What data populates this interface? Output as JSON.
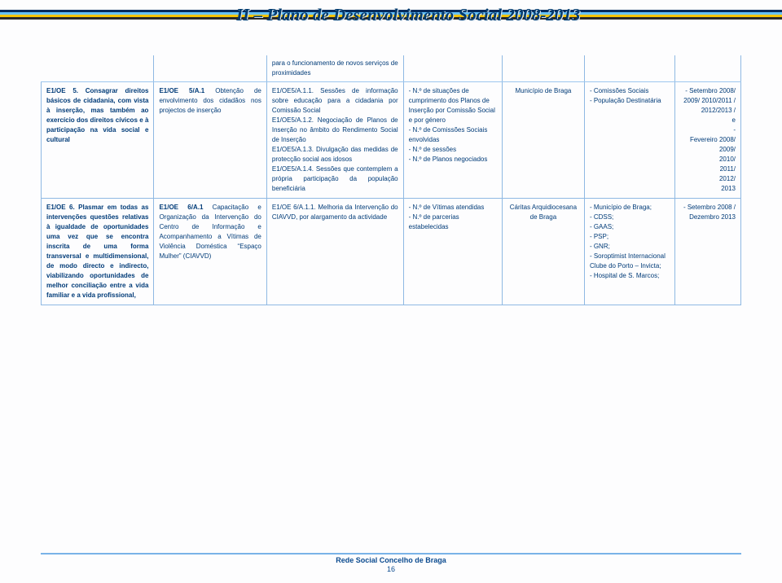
{
  "header": {
    "title": "II – Plano de Desenvolvimento Social 2008-2013"
  },
  "row_extra": {
    "c3": "para o funcionamento de novos serviços de proximidades"
  },
  "row1": {
    "c1": "E1/OE 5. Consagrar direitos básicos de cidadania, com vista à inserção, mas também ao exercício dos direitos cívicos e à participação na vida social e cultural",
    "c2a": "E1/OE 5/A.1",
    "c2b": " Obtenção de envolvimento dos cidadãos nos projectos de inserção",
    "c3": "E1/OE5/A.1.1. Sessões de informação sobre educação para a cidadania por Comissão Social\nE1/OE5/A.1.2. Negociação de Planos de Inserção no âmbito do Rendimento Social de Inserção\nE1/OE5/A.1.3. Divulgação das medidas de protecção social aos idosos\nE1/OE5/A.1.4. Sessões que contemplem a própria participação da população beneficiária",
    "c4": "- N.º de situações de cumprimento dos Planos de Inserção por Comissão Social e por género\n- N.º de Comissões Sociais envolvidas\n- N.º de sessões\n- N.º de Planos negociados",
    "c5": "Município de Braga",
    "c6": "- Comissões Sociais\n- População Destinatária",
    "c7": "- Setembro 2008/ 2009/ 2010/2011 /\n2012/2013 /\ne\n-\nFevereiro 2008/\n2009/\n2010/\n2011/\n2012/\n2013"
  },
  "row2": {
    "c1": "E1/OE 6. Plasmar em todas as intervenções questões relativas à igualdade de oportunidades uma vez que se encontra inscrita de uma forma transversal e multidimensional, de modo directo e indirecto, viabilizando oportunidades de melhor conciliação entre a vida familiar e a vida profissional,",
    "c2a": "E1/OE 6/A.1",
    "c2b": " Capacitação e Organização da Intervenção do Centro de Informação e Acompanhamento a Vítimas de Violência Doméstica “Espaço Mulher” (CIAVVD)",
    "c3": "E1/OE 6/A.1.1. Melhoria da Intervenção do CIAVVD, por alargamento da actividade",
    "c4": "- N.º de Vítimas atendidas\n- N.º de parcerias estabelecidas",
    "c5": "Cáritas Arquidiocesana de Braga",
    "c6": "- Município de Braga;\n- CDSS;\n- GAAS;\n- PSP;\n- GNR;\n- Soroptimist Internacional Clube do Porto – Invicta;\n- Hospital de S. Marcos;",
    "c7": "- Setembro 2008 / Dezembro 2013"
  },
  "footer": {
    "text": "Rede Social Concelho de Braga",
    "page": "16"
  },
  "colors": {
    "text": "#003b78",
    "border": "#8fb9e3",
    "headerText": "#003b6f"
  }
}
